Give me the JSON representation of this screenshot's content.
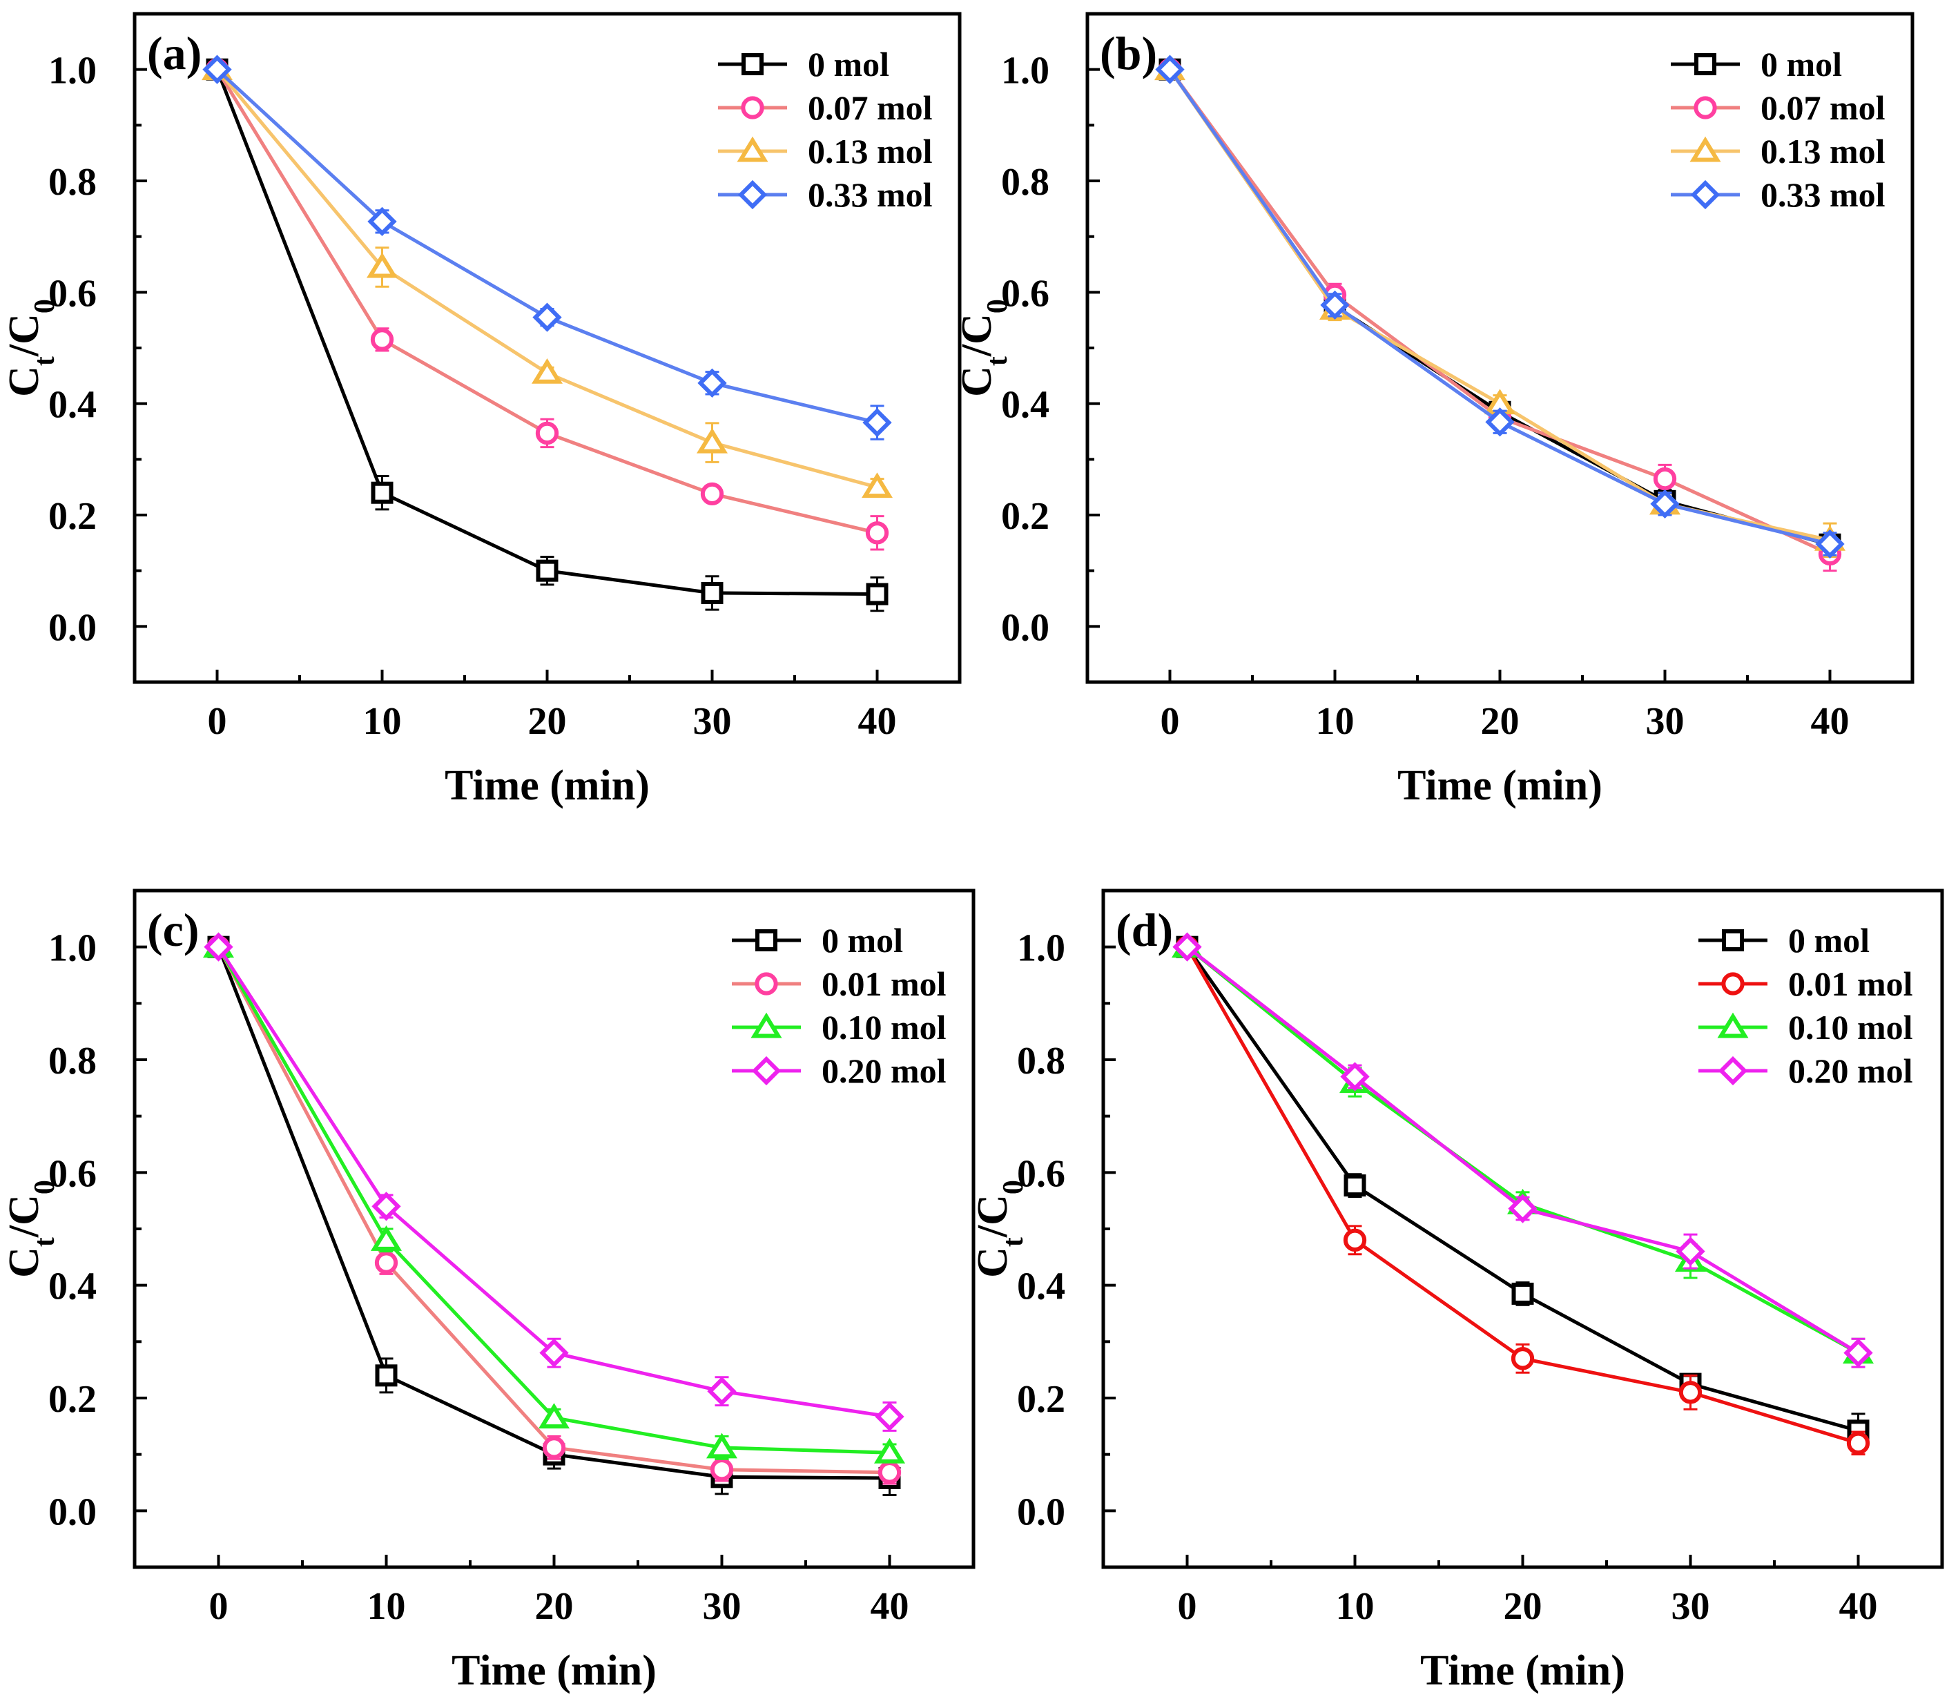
{
  "chart_data": [
    {
      "type": "line",
      "panel_label": "(a)",
      "xlabel": "Time (min)",
      "ylabel": "C_t/C_0",
      "ylim": [
        -0.1,
        1.1
      ],
      "xlim": [
        -5,
        45
      ],
      "xticks": [
        0,
        10,
        20,
        30,
        40
      ],
      "xtick_labels": [
        "0",
        "10",
        "20",
        "30",
        "40"
      ],
      "yticks": [
        0.0,
        0.2,
        0.4,
        0.6,
        0.8,
        1.0
      ],
      "ytick_labels": [
        "0.0",
        "0.2",
        "0.4",
        "0.6",
        "0.8",
        "1.0"
      ],
      "legend_position": "top-right",
      "x": [
        0,
        10,
        20,
        30,
        40
      ],
      "series": [
        {
          "name": "0 mol",
          "color": "#000000",
          "marker": "square",
          "values": [
            1.0,
            0.24,
            0.1,
            0.06,
            0.058
          ],
          "errors": [
            0,
            0.03,
            0.025,
            0.03,
            0.03
          ]
        },
        {
          "name": "0.07 mol",
          "color": "#f08080",
          "marker_color": "#ff3fa0",
          "marker": "circle",
          "values": [
            1.0,
            0.515,
            0.347,
            0.238,
            0.168
          ],
          "errors": [
            0,
            0.02,
            0.025,
            0.01,
            0.03
          ]
        },
        {
          "name": "0.13 mol",
          "color": "#f7c46c",
          "marker_color": "#f5b942",
          "marker": "triangle",
          "values": [
            1.0,
            0.645,
            0.455,
            0.33,
            0.25
          ],
          "errors": [
            0,
            0.035,
            0.01,
            0.035,
            0.015
          ]
        },
        {
          "name": "0.33 mol",
          "color": "#5b7ff0",
          "marker_color": "#3f6df5",
          "marker": "diamond",
          "values": [
            1.0,
            0.727,
            0.555,
            0.437,
            0.366
          ],
          "errors": [
            0,
            0.02,
            0.015,
            0.02,
            0.03
          ]
        }
      ]
    },
    {
      "type": "line",
      "panel_label": "(b)",
      "xlabel": "Time (min)",
      "ylabel": "C_t/C_0",
      "ylim": [
        -0.1,
        1.1
      ],
      "xlim": [
        -5,
        45
      ],
      "xticks": [
        0,
        10,
        20,
        30,
        40
      ],
      "xtick_labels": [
        "0",
        "10",
        "20",
        "30",
        "40"
      ],
      "yticks": [
        0.0,
        0.2,
        0.4,
        0.6,
        0.8,
        1.0
      ],
      "ytick_labels": [
        "0.0",
        "0.2",
        "0.4",
        "0.6",
        "0.8",
        "1.0"
      ],
      "legend_position": "top-right",
      "x": [
        0,
        10,
        20,
        30,
        40
      ],
      "series": [
        {
          "name": "0 mol",
          "color": "#000000",
          "marker": "square",
          "values": [
            1.0,
            0.575,
            0.385,
            0.225,
            0.147
          ],
          "errors": [
            0,
            0.02,
            0.02,
            0.02,
            0.02
          ]
        },
        {
          "name": "0.07 mol",
          "color": "#f08080",
          "marker_color": "#ff3fa0",
          "marker": "circle",
          "values": [
            1.0,
            0.595,
            0.375,
            0.265,
            0.13
          ],
          "errors": [
            0,
            0.02,
            0.02,
            0.025,
            0.03
          ]
        },
        {
          "name": "0.13 mol",
          "color": "#f7c46c",
          "marker_color": "#f5b942",
          "marker": "triangle",
          "values": [
            1.0,
            0.57,
            0.4,
            0.22,
            0.155
          ],
          "errors": [
            0,
            0.02,
            0.015,
            0.02,
            0.03
          ]
        },
        {
          "name": "0.33 mol",
          "color": "#5b7ff0",
          "marker_color": "#3f6df5",
          "marker": "diamond",
          "values": [
            1.0,
            0.577,
            0.367,
            0.22,
            0.148
          ],
          "errors": [
            0,
            0.02,
            0.02,
            0.02,
            0.02
          ]
        }
      ]
    },
    {
      "type": "line",
      "panel_label": "(c)",
      "xlabel": "Time (min)",
      "ylabel": "C_t/C_0",
      "ylim": [
        -0.1,
        1.1
      ],
      "xlim": [
        -5,
        45
      ],
      "xticks": [
        0,
        10,
        20,
        30,
        40
      ],
      "xtick_labels": [
        "0",
        "10",
        "20",
        "30",
        "40"
      ],
      "yticks": [
        0.0,
        0.2,
        0.4,
        0.6,
        0.8,
        1.0
      ],
      "ytick_labels": [
        "0.0",
        "0.2",
        "0.4",
        "0.6",
        "0.8",
        "1.0"
      ],
      "legend_position": "top-right",
      "x": [
        0,
        10,
        20,
        30,
        40
      ],
      "series": [
        {
          "name": "0 mol",
          "color": "#000000",
          "marker": "square",
          "values": [
            1.0,
            0.24,
            0.1,
            0.06,
            0.058
          ],
          "errors": [
            0,
            0.03,
            0.025,
            0.03,
            0.03
          ]
        },
        {
          "name": "0.01 mol",
          "color": "#f08080",
          "marker_color": "#ff3fa0",
          "marker": "circle",
          "values": [
            1.0,
            0.44,
            0.112,
            0.073,
            0.068
          ],
          "errors": [
            0,
            0.02,
            0.02,
            0.02,
            0.02
          ]
        },
        {
          "name": "0.10 mol",
          "color": "#22ee22",
          "marker_color": "#22ee22",
          "marker": "triangle",
          "values": [
            1.0,
            0.48,
            0.165,
            0.112,
            0.103
          ],
          "errors": [
            0,
            0.02,
            0.015,
            0.02,
            0.015
          ]
        },
        {
          "name": "0.20 mol",
          "color": "#ee22ee",
          "marker_color": "#ee22ee",
          "marker": "diamond",
          "values": [
            1.0,
            0.54,
            0.28,
            0.212,
            0.167
          ],
          "errors": [
            0,
            0.02,
            0.025,
            0.025,
            0.025
          ]
        }
      ]
    },
    {
      "type": "line",
      "panel_label": "(d)",
      "xlabel": "Time (min)",
      "ylabel": "C_t/C_0",
      "ylim": [
        -0.1,
        1.1
      ],
      "xlim": [
        -5,
        45
      ],
      "xticks": [
        0,
        10,
        20,
        30,
        40
      ],
      "xtick_labels": [
        "0",
        "10",
        "20",
        "30",
        "40"
      ],
      "yticks": [
        0.0,
        0.2,
        0.4,
        0.6,
        0.8,
        1.0
      ],
      "ytick_labels": [
        "0.0",
        "0.2",
        "0.4",
        "0.6",
        "0.8",
        "1.0"
      ],
      "legend_position": "top-right",
      "x": [
        0,
        10,
        20,
        30,
        40
      ],
      "series": [
        {
          "name": "0 mol",
          "color": "#000000",
          "marker": "square",
          "values": [
            1.0,
            0.577,
            0.385,
            0.225,
            0.142
          ],
          "errors": [
            0,
            0.02,
            0.02,
            0.015,
            0.03
          ]
        },
        {
          "name": "0.01 mol",
          "color": "#ee1111",
          "marker_color": "#ee1111",
          "marker": "circle",
          "values": [
            1.0,
            0.48,
            0.27,
            0.21,
            0.12
          ],
          "errors": [
            0,
            0.025,
            0.025,
            0.03,
            0.02
          ]
        },
        {
          "name": "0.10 mol",
          "color": "#22ee22",
          "marker_color": "#22ee22",
          "marker": "triangle",
          "values": [
            1.0,
            0.76,
            0.545,
            0.443,
            0.28
          ],
          "errors": [
            0,
            0.025,
            0.02,
            0.03,
            0.025
          ]
        },
        {
          "name": "0.20 mol",
          "color": "#ee22ee",
          "marker_color": "#ee22ee",
          "marker": "diamond",
          "values": [
            1.0,
            0.77,
            0.536,
            0.46,
            0.28
          ],
          "errors": [
            0,
            0.02,
            0.02,
            0.03,
            0.025
          ]
        }
      ]
    }
  ]
}
